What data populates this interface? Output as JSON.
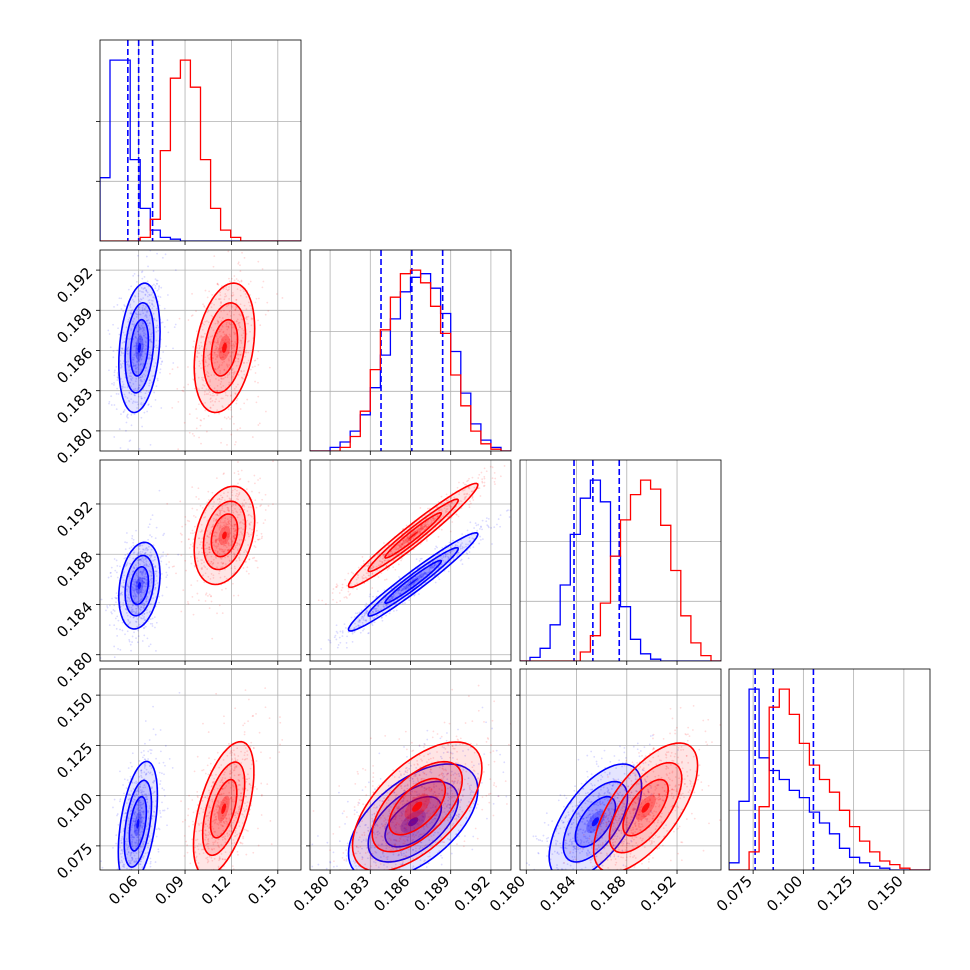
{
  "chart_data": {
    "type": "corner",
    "title": "",
    "grid": true,
    "series_colors": [
      "#0000ff",
      "#ff0000"
    ],
    "parameters": [
      {
        "index": 0,
        "range": [
          0.035,
          0.165
        ],
        "ticks": [
          "0.06",
          "0.09",
          "0.12",
          "0.15"
        ],
        "tick_values": [
          0.06,
          0.09,
          0.12,
          0.15
        ]
      },
      {
        "index": 1,
        "range": [
          0.1785,
          0.1935
        ],
        "ticks": [
          "0.180",
          "0.183",
          "0.186",
          "0.189",
          "0.192"
        ],
        "tick_values": [
          0.18,
          0.183,
          0.186,
          0.189,
          0.192
        ]
      },
      {
        "index": 2,
        "range": [
          0.1795,
          0.1955
        ],
        "ticks": [
          "0.180",
          "0.184",
          "0.188",
          "0.192"
        ],
        "tick_values": [
          0.18,
          0.184,
          0.188,
          0.192
        ]
      },
      {
        "index": 3,
        "range": [
          0.063,
          0.163
        ],
        "ticks": [
          "0.075",
          "0.100",
          "0.125",
          "0.150"
        ],
        "tick_values": [
          0.075,
          0.1,
          0.125,
          0.15
        ]
      }
    ],
    "series": [
      {
        "color": "#0000ff",
        "quantiles": [
          [
            0.053,
            0.06,
            0.069
          ],
          [
            0.1838,
            0.1861,
            0.1884
          ],
          [
            0.1838,
            0.1853,
            0.1874
          ],
          [
            0.076,
            0.085,
            0.105
          ]
        ],
        "histograms": [
          [
            0.35,
            1.0,
            1.0,
            0.45,
            0.18,
            0.06,
            0.02,
            0.01,
            0,
            0,
            0,
            0,
            0,
            0,
            0,
            0,
            0,
            0,
            0,
            0
          ],
          [
            0,
            0,
            0.02,
            0.05,
            0.11,
            0.2,
            0.35,
            0.53,
            0.73,
            0.88,
            0.96,
            0.98,
            0.9,
            0.76,
            0.55,
            0.32,
            0.15,
            0.06,
            0.02,
            0
          ],
          [
            0,
            0.02,
            0.07,
            0.2,
            0.42,
            0.7,
            0.9,
            1.0,
            0.88,
            0.58,
            0.3,
            0.12,
            0.04,
            0.01,
            0,
            0,
            0,
            0,
            0,
            0
          ],
          [
            0.04,
            0.38,
            1.0,
            0.62,
            0.55,
            0.5,
            0.44,
            0.4,
            0.32,
            0.26,
            0.2,
            0.12,
            0.07,
            0.04,
            0.02,
            0.01,
            0,
            0,
            0,
            0
          ]
        ],
        "pairs": [
          {
            "row": 1,
            "col": 0,
            "center": [
              0.0605,
              0.1862
            ],
            "sigma": [
              0.0058,
              0.0021
            ],
            "rho": 0.25
          },
          {
            "row": 2,
            "col": 0,
            "center": [
              0.0605,
              0.1855
            ],
            "sigma": [
              0.0058,
              0.0015
            ],
            "rho": 0.25
          },
          {
            "row": 2,
            "col": 1,
            "center": [
              0.1862,
              0.1858
            ],
            "sigma": [
              0.0021,
              0.0017
            ],
            "rho": 0.97
          },
          {
            "row": 3,
            "col": 0,
            "center": [
              0.0595,
              0.086
            ],
            "sigma": [
              0.0055,
              0.0135
            ],
            "rho": 0.45
          },
          {
            "row": 3,
            "col": 1,
            "center": [
              0.1862,
              0.087
            ],
            "sigma": [
              0.0021,
              0.0125
            ],
            "rho": 0.55
          },
          {
            "row": 3,
            "col": 2,
            "center": [
              0.1855,
              0.087
            ],
            "sigma": [
              0.0016,
              0.0125
            ],
            "rho": 0.6
          }
        ]
      },
      {
        "color": "#ff0000",
        "quantiles": [],
        "histograms": [
          [
            0,
            0,
            0,
            0,
            0.02,
            0.12,
            0.5,
            0.9,
            1.0,
            0.85,
            0.45,
            0.18,
            0.06,
            0.02,
            0,
            0,
            0,
            0,
            0,
            0
          ],
          [
            0,
            0,
            0,
            0.02,
            0.08,
            0.22,
            0.45,
            0.67,
            0.85,
            0.98,
            1.0,
            0.93,
            0.8,
            0.65,
            0.42,
            0.25,
            0.11,
            0.04,
            0.01,
            0
          ],
          [
            0,
            0,
            0,
            0,
            0,
            0,
            0.05,
            0.14,
            0.32,
            0.58,
            0.78,
            0.92,
            1.0,
            0.95,
            0.75,
            0.5,
            0.25,
            0.1,
            0.03,
            0
          ],
          [
            0,
            0,
            0.1,
            0.35,
            0.9,
            1.0,
            0.86,
            0.7,
            0.58,
            0.5,
            0.43,
            0.33,
            0.24,
            0.16,
            0.1,
            0.05,
            0.03,
            0.01,
            0,
            0
          ]
        ],
        "pairs": [
          {
            "row": 1,
            "col": 0,
            "center": [
              0.1155,
              0.1862
            ],
            "sigma": [
              0.0085,
              0.0021
            ],
            "rho": 0.3
          },
          {
            "row": 2,
            "col": 0,
            "center": [
              0.1155,
              0.1895
            ],
            "sigma": [
              0.0085,
              0.0017
            ],
            "rho": 0.3
          },
          {
            "row": 2,
            "col": 1,
            "center": [
              0.1862,
              0.1895
            ],
            "sigma": [
              0.0021,
              0.0018
            ],
            "rho": 0.97
          },
          {
            "row": 3,
            "col": 0,
            "center": [
              0.115,
              0.0935
            ],
            "sigma": [
              0.0085,
              0.0145
            ],
            "rho": 0.55
          },
          {
            "row": 3,
            "col": 1,
            "center": [
              0.1865,
              0.0945
            ],
            "sigma": [
              0.0021,
              0.014
            ],
            "rho": 0.6
          },
          {
            "row": 3,
            "col": 2,
            "center": [
              0.1895,
              0.094
            ],
            "sigma": [
              0.0018,
              0.014
            ],
            "rho": 0.65
          }
        ]
      }
    ]
  }
}
